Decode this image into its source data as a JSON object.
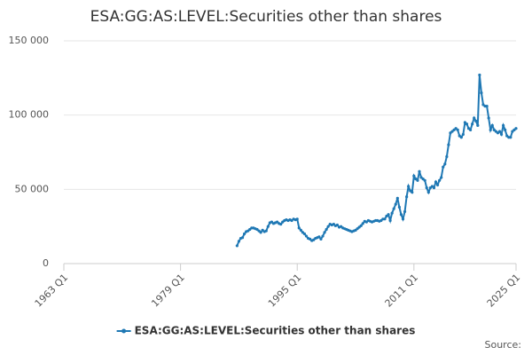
{
  "chart_data": {
    "type": "line",
    "title": "ESA:GG:AS:LEVEL:Securities other than shares",
    "source": "Source:",
    "xlim": [
      "1963 Q1",
      "2025 Q1"
    ],
    "xticks": [
      "1963 Q1",
      "1979 Q1",
      "1995 Q1",
      "2011 Q1",
      "2025 Q1"
    ],
    "ylim": [
      0,
      150000
    ],
    "yticks": [
      0,
      {
        "value": 50000,
        "label": "50 000"
      },
      {
        "value": 100000,
        "label": "100 000"
      },
      {
        "value": 150000,
        "label": "150 000"
      }
    ],
    "grid": true,
    "legend": "bottom",
    "x": [
      "1986 Q4",
      "1987 Q1",
      "1987 Q2",
      "1987 Q3",
      "1987 Q4",
      "1988 Q1",
      "1988 Q2",
      "1988 Q3",
      "1988 Q4",
      "1989 Q1",
      "1989 Q2",
      "1989 Q3",
      "1989 Q4",
      "1990 Q1",
      "1990 Q2",
      "1990 Q3",
      "1990 Q4",
      "1991 Q1",
      "1991 Q2",
      "1991 Q3",
      "1991 Q4",
      "1992 Q1",
      "1992 Q2",
      "1992 Q3",
      "1992 Q4",
      "1993 Q1",
      "1993 Q2",
      "1993 Q3",
      "1993 Q4",
      "1994 Q1",
      "1994 Q2",
      "1994 Q3",
      "1994 Q4",
      "1995 Q1",
      "1995 Q2",
      "1995 Q3",
      "1995 Q4",
      "1996 Q1",
      "1996 Q2",
      "1996 Q3",
      "1996 Q4",
      "1997 Q1",
      "1997 Q2",
      "1997 Q3",
      "1997 Q4",
      "1998 Q1",
      "1998 Q2",
      "1998 Q3",
      "1998 Q4",
      "1999 Q1",
      "1999 Q2",
      "1999 Q3",
      "1999 Q4",
      "2000 Q1",
      "2000 Q2",
      "2000 Q3",
      "2000 Q4",
      "2001 Q1",
      "2001 Q2",
      "2001 Q3",
      "2001 Q4",
      "2002 Q1",
      "2002 Q2",
      "2002 Q3",
      "2002 Q4",
      "2003 Q1",
      "2003 Q2",
      "2003 Q3",
      "2003 Q4",
      "2004 Q1",
      "2004 Q2",
      "2004 Q3",
      "2004 Q4",
      "2005 Q1",
      "2005 Q2",
      "2005 Q3",
      "2005 Q4",
      "2006 Q1",
      "2006 Q2",
      "2006 Q3",
      "2006 Q4",
      "2007 Q1",
      "2007 Q2",
      "2007 Q3",
      "2007 Q4",
      "2008 Q1",
      "2008 Q2",
      "2008 Q3",
      "2008 Q4",
      "2009 Q1",
      "2009 Q2",
      "2009 Q3",
      "2009 Q4",
      "2010 Q1",
      "2010 Q2",
      "2010 Q3",
      "2010 Q4",
      "2011 Q1",
      "2011 Q2",
      "2011 Q3",
      "2011 Q4",
      "2012 Q1",
      "2012 Q2",
      "2012 Q3",
      "2012 Q4",
      "2013 Q1",
      "2013 Q2",
      "2013 Q3",
      "2013 Q4",
      "2014 Q1",
      "2014 Q2",
      "2014 Q3",
      "2014 Q4",
      "2015 Q1",
      "2015 Q2",
      "2015 Q3",
      "2015 Q4",
      "2016 Q1",
      "2016 Q2",
      "2016 Q3",
      "2016 Q4",
      "2017 Q1",
      "2017 Q2",
      "2017 Q3",
      "2017 Q4",
      "2018 Q1",
      "2018 Q2",
      "2018 Q3",
      "2018 Q4",
      "2019 Q1",
      "2019 Q2",
      "2019 Q3",
      "2019 Q4",
      "2020 Q1",
      "2020 Q2",
      "2020 Q3",
      "2020 Q4",
      "2021 Q1",
      "2021 Q2",
      "2021 Q3",
      "2021 Q4",
      "2022 Q1",
      "2022 Q2",
      "2022 Q3",
      "2022 Q4",
      "2023 Q1",
      "2023 Q2",
      "2023 Q3",
      "2023 Q4",
      "2024 Q1",
      "2024 Q2",
      "2024 Q3",
      "2024 Q4",
      "2025 Q1"
    ],
    "series": [
      {
        "name": "ESA:GG:AS:LEVEL:Securities other than shares",
        "color": "#1f78b4",
        "values": [
          12000,
          15000,
          17000,
          17500,
          20000,
          21500,
          22000,
          23000,
          24000,
          24000,
          23500,
          23000,
          22000,
          21000,
          22500,
          21500,
          22000,
          25000,
          27500,
          28000,
          27000,
          27500,
          28000,
          27000,
          26500,
          28000,
          29000,
          29500,
          29000,
          29500,
          29000,
          30000,
          29500,
          30000,
          24000,
          22500,
          21000,
          20000,
          18500,
          17000,
          16500,
          15500,
          16000,
          17000,
          17500,
          18000,
          16500,
          18500,
          21000,
          23000,
          25000,
          26500,
          26000,
          26500,
          25500,
          26000,
          24500,
          25000,
          24000,
          23500,
          23000,
          22500,
          22000,
          21500,
          22000,
          22500,
          23500,
          24500,
          25500,
          27000,
          28500,
          28000,
          29000,
          28500,
          28000,
          28500,
          29000,
          29000,
          28500,
          29000,
          30000,
          30000,
          32000,
          33000,
          29000,
          34000,
          37000,
          40000,
          44000,
          38000,
          33000,
          30000,
          35000,
          45000,
          52000,
          49000,
          48000,
          59000,
          57000,
          56000,
          62000,
          58000,
          57000,
          56000,
          51000,
          48000,
          51000,
          52000,
          51000,
          55000,
          53000,
          56000,
          58000,
          65000,
          67000,
          72000,
          80000,
          88000,
          89000,
          90000,
          91000,
          90000,
          86000,
          85000,
          87000,
          95000,
          94000,
          91000,
          90000,
          94000,
          98000,
          96000,
          93000,
          127000,
          115000,
          107000,
          106000,
          106000,
          98000,
          90000,
          93000,
          90000,
          89000,
          88000,
          89000,
          87000,
          93000,
          90000,
          86000,
          85000,
          85000,
          89000,
          90000,
          91000
        ]
      }
    ]
  }
}
